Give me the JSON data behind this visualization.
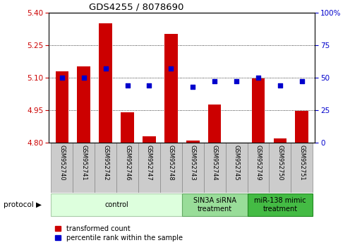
{
  "title": "GDS4255 / 8078690",
  "samples": [
    "GSM952740",
    "GSM952741",
    "GSM952742",
    "GSM952746",
    "GSM952747",
    "GSM952748",
    "GSM952743",
    "GSM952744",
    "GSM952745",
    "GSM952749",
    "GSM952750",
    "GSM952751"
  ],
  "transformed_count": [
    5.13,
    5.15,
    5.35,
    4.94,
    4.83,
    5.3,
    4.81,
    4.975,
    4.8,
    5.095,
    4.82,
    4.945
  ],
  "percentile_rank": [
    50,
    50,
    57,
    44,
    44,
    57,
    43,
    47,
    47,
    50,
    44,
    47
  ],
  "ylim_left": [
    4.8,
    5.4
  ],
  "ylim_right": [
    0,
    100
  ],
  "yticks_left": [
    4.8,
    4.95,
    5.1,
    5.25,
    5.4
  ],
  "yticks_right": [
    0,
    25,
    50,
    75,
    100
  ],
  "bar_color": "#cc0000",
  "dot_color": "#0000cc",
  "protocol_groups": [
    {
      "label": "control",
      "start": 0,
      "end": 6,
      "color": "#ddffdd",
      "border": "#aaccaa"
    },
    {
      "label": "SIN3A siRNA\ntreatment",
      "start": 6,
      "end": 9,
      "color": "#99dd99",
      "border": "#66aa66"
    },
    {
      "label": "miR-138 mimic\ntreatment",
      "start": 9,
      "end": 12,
      "color": "#44bb44",
      "border": "#228822"
    }
  ],
  "left_label_color": "#cc0000",
  "right_label_color": "#0000cc",
  "xlabels_bg": "#cccccc",
  "legend_items": [
    {
      "label": "transformed count",
      "color": "#cc0000"
    },
    {
      "label": "percentile rank within the sample",
      "color": "#0000cc"
    }
  ]
}
